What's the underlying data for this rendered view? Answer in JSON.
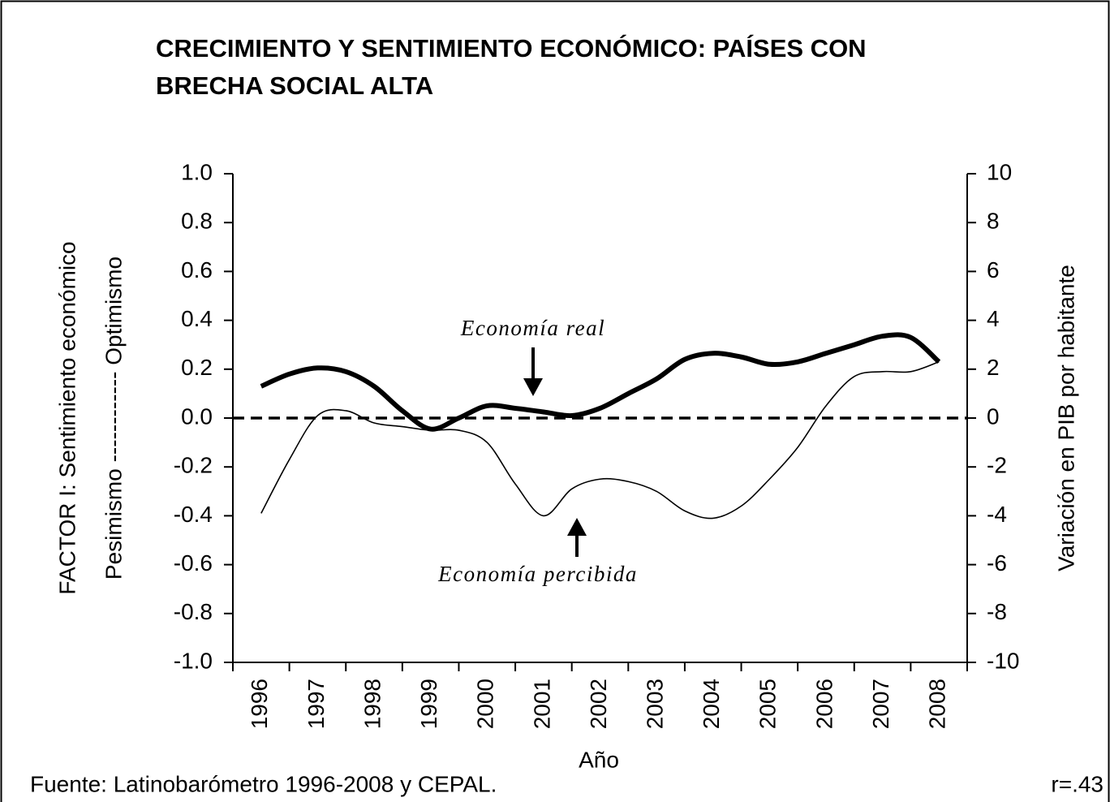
{
  "chart_data": {
    "type": "line",
    "title_lines": [
      "CRECIMIENTO Y SENTIMIENTO ECONÓMICO: PAÍSES CON",
      "BRECHA SOCIAL ALTA"
    ],
    "ylabel": "FACTOR I: Sentimiento económico",
    "ylabel2": "Pesimismo ------------ Optimismo",
    "y2label": "Variación en PIB por habitante",
    "xlabel": "Año",
    "source": "Fuente: Latinobarómetro 1996-2008 y CEPAL.",
    "correlation": "r=.43",
    "annotations": [
      "Economía real",
      "Economía percibida"
    ],
    "x": [
      1996,
      1996.5,
      1997,
      1997.5,
      1998,
      1998.5,
      1999,
      1999.5,
      2000,
      2000.5,
      2001,
      2001.5,
      2002,
      2002.5,
      2003,
      2003.5,
      2004,
      2004.5,
      2005,
      2005.5,
      2006,
      2006.5,
      2007,
      2007.5,
      2008
    ],
    "xlim": [
      1995.5,
      2008.5
    ],
    "xticks": [
      1996,
      1997,
      1998,
      1999,
      2000,
      2001,
      2002,
      2003,
      2004,
      2005,
      2006,
      2007,
      2008
    ],
    "ylim": [
      -1.0,
      1.0
    ],
    "yticks": [
      {
        "value": -1,
        "label": "-1.0"
      },
      -0.8,
      -0.6,
      -0.4,
      -0.2,
      {
        "value": 0,
        "label": "0.0"
      },
      0.2,
      0.4,
      0.6,
      0.8,
      {
        "value": 1,
        "label": "1.0"
      }
    ],
    "y2lim": [
      -10,
      10
    ],
    "y2ticks": [
      -10,
      -8,
      -6,
      -4,
      -2,
      0,
      2,
      4,
      6,
      8,
      10
    ],
    "reference_line": 0,
    "series": [
      {
        "name": "Economía percibida",
        "color": "#000000",
        "width": 1.6,
        "values": [
          -0.39,
          -0.17,
          0.01,
          0.03,
          -0.02,
          -0.035,
          -0.05,
          -0.05,
          -0.1,
          -0.27,
          -0.4,
          -0.29,
          -0.25,
          -0.26,
          -0.3,
          -0.38,
          -0.41,
          -0.36,
          -0.25,
          -0.12,
          0.05,
          0.17,
          0.19,
          0.19,
          0.23
        ]
      },
      {
        "name": "Economía real",
        "color": "#000000",
        "width": 6,
        "axis": "y2",
        "values": [
          1.3,
          1.8,
          2.05,
          1.9,
          1.3,
          0.3,
          -0.45,
          0.0,
          0.5,
          0.4,
          0.25,
          0.1,
          0.4,
          1.0,
          1.6,
          2.4,
          2.65,
          2.5,
          2.2,
          2.3,
          2.65,
          3.0,
          3.35,
          3.3,
          2.3
        ]
      }
    ]
  }
}
